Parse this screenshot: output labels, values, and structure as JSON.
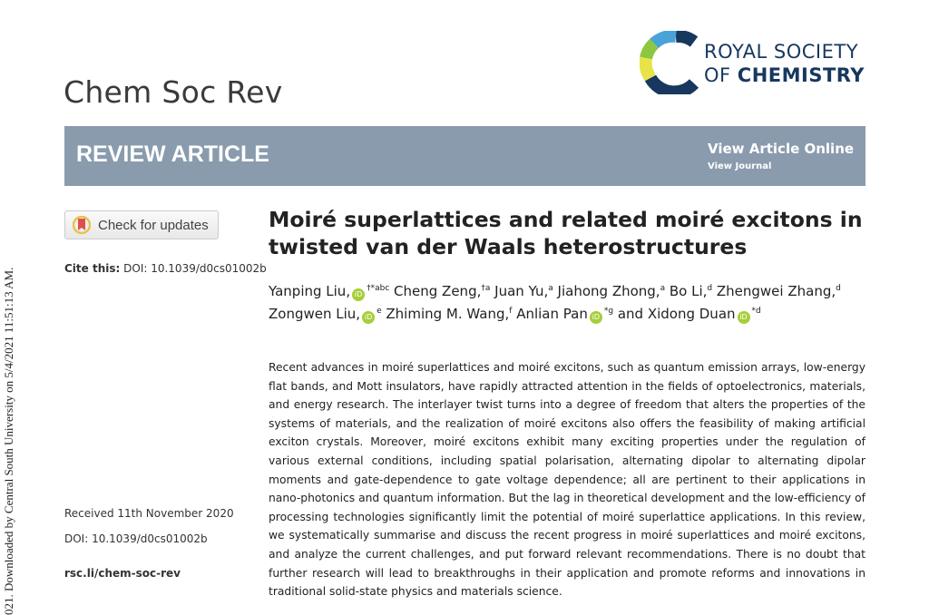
{
  "side_note": "021. Downloaded by Central South University on 5/4/2021 11:51:13 AM.",
  "journal": "Chem Soc Rev",
  "publisher": {
    "line1": "ROYAL SOCIETY",
    "line2_prefix": "OF ",
    "line2_bold": "CHEMISTRY"
  },
  "banner": {
    "type": "REVIEW ARTICLE",
    "view_online": "View Article Online",
    "view_journal": "View Journal",
    "color": "#8a9bad"
  },
  "check_updates": "Check for updates",
  "cite": {
    "label": "Cite this:",
    "value": " DOI: 10.1039/d0cs01002b"
  },
  "received": "Received 11th November 2020",
  "doi": "DOI: 10.1039/d0cs01002b",
  "link": "rsc.li/chem-soc-rev",
  "title": "Moiré superlattices and related moiré excitons in twisted van der Waals heterostructures",
  "authors": [
    {
      "name": "Yanping Liu,",
      "orcid": true,
      "sup": "†*abc"
    },
    {
      "name": " Cheng Zeng,",
      "sup": "†a"
    },
    {
      "name": " Juan Yu,",
      "sup": "a"
    },
    {
      "name": " Jiahong Zhong,",
      "sup": "a"
    },
    {
      "name": " Bo Li,",
      "sup": "d"
    },
    {
      "name": " Zhengwei Zhang,",
      "sup": "d"
    },
    {
      "name": " Zongwen Liu,",
      "orcid": true,
      "sup": "e"
    },
    {
      "name": " Zhiming M. Wang,",
      "sup": "f"
    },
    {
      "name": " Anlian Pan",
      "orcid": true,
      "sup": "*g"
    },
    {
      "name": " and Xidong Duan",
      "orcid": true,
      "sup": "*d"
    }
  ],
  "abstract": "Recent advances in moiré superlattices and moiré excitons, such as quantum emission arrays, low-energy flat bands, and Mott insulators, have rapidly attracted attention in the fields of optoelectronics, materials, and energy research. The interlayer twist turns into a degree of freedom that alters the properties of the systems of materials, and the realization of moiré excitons also offers the feasibility of making artificial exciton crystals. Moreover, moiré excitons exhibit many exciting properties under the regulation of various external conditions, including spatial polarisation, alternating dipolar to alternating dipolar moments and gate-dependence to gate voltage dependence; all are pertinent to their applications in nano-photonics and quantum information. But the lag in theoretical development and the low-efficiency of processing technologies significantly limit the potential of moiré superlattice applications. In this review, we systematically summarise and discuss the recent progress in moiré superlattices and moiré excitons, and analyze the current challenges, and put forward relevant recommendations. There is no doubt that further research will lead to breakthroughs in their application and promote reforms and innovations in traditional solid-state physics and materials science."
}
